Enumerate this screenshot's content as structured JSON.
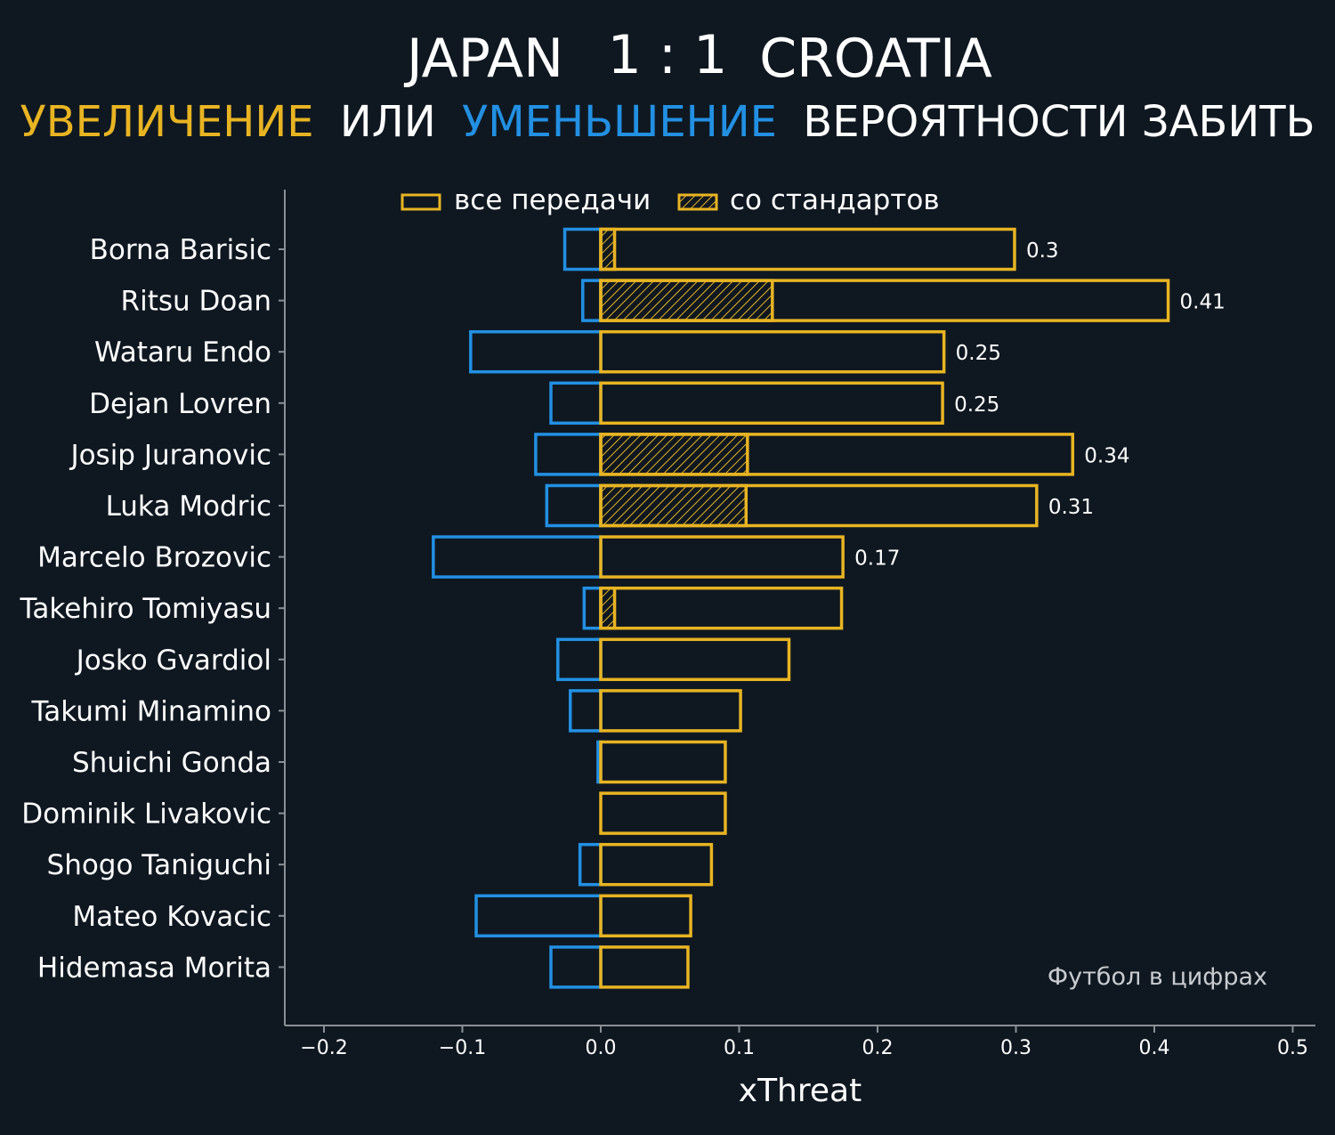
{
  "colors": {
    "background": "#0f1821",
    "increase": "#e8b422",
    "decrease": "#2290e3",
    "text": "#ffffff",
    "axis": "#8a9096",
    "watermark": "#c8ccd0"
  },
  "title": {
    "home": "JAPAN",
    "score": "1 : 1",
    "away": "CROATIA"
  },
  "subtitle": {
    "increase_word": "УВЕЛИЧЕНИЕ",
    "or_word": "ИЛИ",
    "decrease_word": "УМЕНЬШЕНИЕ",
    "rest": "ВЕРОЯТНОСТИ ЗАБИТЬ"
  },
  "watermark": "Футбол в цифрах",
  "chart_data": {
    "type": "bar",
    "orientation": "horizontal",
    "title": "JAPAN 1 : 1 CROATIA",
    "subtitle": "УВЕЛИЧЕНИЕ ИЛИ УМЕНЬШЕНИЕ ВЕРОЯТНОСТИ ЗАБИТЬ",
    "xlabel": "xThreat",
    "ylabel": "",
    "xlim": [
      -0.2,
      0.5
    ],
    "xticks": [
      -0.2,
      -0.1,
      0.0,
      0.1,
      0.2,
      0.3,
      0.4,
      0.5
    ],
    "xtick_labels": [
      "−0.2",
      "−0.1",
      "0.0",
      "0.1",
      "0.2",
      "0.3",
      "0.4",
      "0.5"
    ],
    "legend": {
      "placement": "top",
      "entries": [
        {
          "label": "все передачи",
          "style": "outline"
        },
        {
          "label": "со стандартов",
          "style": "hatched"
        }
      ]
    },
    "categories": [
      "Borna Barisic",
      "Ritsu Doan",
      "Wataru Endo",
      "Dejan Lovren",
      "Josip Juranovic",
      "Luka Modric",
      "Marcelo Brozovic",
      "Takehiro Tomiyasu",
      "Josko Gvardiol",
      "Takumi Minamino",
      "Shuichi Gonda",
      "Dominik Livakovic",
      "Shogo Taniguchi",
      "Mateo Kovacic",
      "Hidemasa Morita"
    ],
    "series": [
      {
        "name": "все передачи (увеличение)",
        "values": [
          0.299,
          0.41,
          0.248,
          0.247,
          0.341,
          0.315,
          0.175,
          0.174,
          0.136,
          0.101,
          0.09,
          0.09,
          0.08,
          0.065,
          0.063
        ]
      },
      {
        "name": "все передачи (уменьшение)",
        "values": [
          -0.026,
          -0.013,
          -0.094,
          -0.036,
          -0.047,
          -0.039,
          -0.121,
          -0.012,
          -0.031,
          -0.022,
          -0.002,
          0.0,
          -0.015,
          -0.09,
          -0.036
        ]
      },
      {
        "name": "со стандартов",
        "values": [
          0.01,
          0.124,
          0.0,
          0.0,
          0.106,
          0.105,
          0.0,
          0.01,
          0.0,
          0.0,
          0.0,
          0.0,
          0.0,
          0.0,
          0.0
        ]
      }
    ],
    "value_labels": [
      "0.3",
      "0.41",
      "0.25",
      "0.25",
      "0.34",
      "0.31",
      "0.17",
      "",
      "",
      "",
      "",
      "",
      "",
      "",
      ""
    ]
  }
}
